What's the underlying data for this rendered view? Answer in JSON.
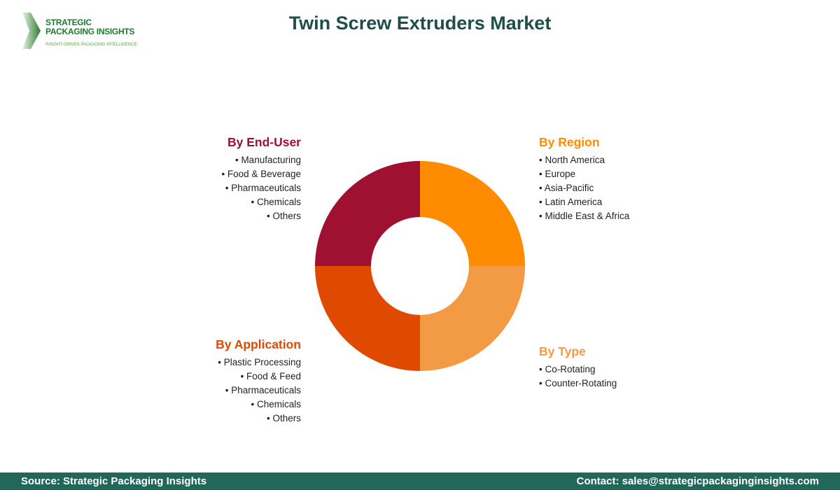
{
  "title": "Twin Screw Extruders Market",
  "logo": {
    "line1": "STRATEGIC",
    "line2": "PACKAGING INSIGHTS",
    "tagline": "INSIGHT-DRIVEN PACKAGING INTELLIGENCE"
  },
  "segments": {
    "end_user": {
      "title": "By End-User",
      "color": "#a01030",
      "items": [
        "Manufacturing",
        "Food & Beverage",
        "Pharmaceuticals",
        "Chemicals",
        "Others"
      ]
    },
    "region": {
      "title": "By Region",
      "color": "#ff8c00",
      "items": [
        "North America",
        "Europe",
        "Asia-Pacific",
        "Latin America",
        "Middle East & Africa"
      ]
    },
    "application": {
      "title": "By Application",
      "color": "#e04a00",
      "items": [
        "Plastic Processing",
        "Food & Feed",
        "Pharmaceuticals",
        "Chemicals",
        "Others"
      ]
    },
    "type": {
      "title": "By Type",
      "color": "#f39a45",
      "items": [
        "Co-Rotating",
        "Counter-Rotating"
      ]
    }
  },
  "chart_data": {
    "type": "pie",
    "donut": true,
    "categories": [
      "By Region",
      "By Type",
      "By Application",
      "By End-User"
    ],
    "values": [
      25,
      25,
      25,
      25
    ],
    "colors": [
      "#ff8c00",
      "#f39a45",
      "#e04a00",
      "#a01030"
    ]
  },
  "footer": {
    "source": "Source: Strategic Packaging Insights",
    "contact": "Contact: sales@strategicpackaginginsights.com"
  }
}
